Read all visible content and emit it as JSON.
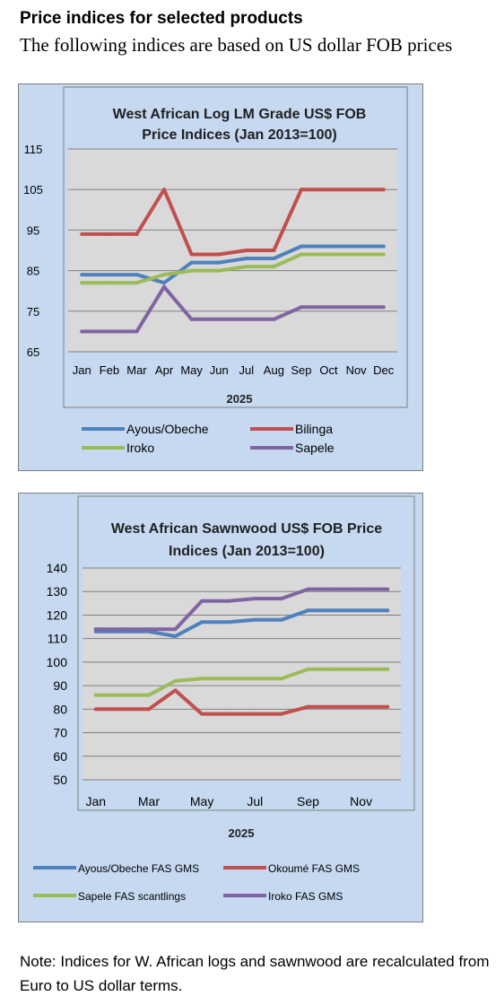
{
  "header": {
    "title": "Price indices for selected products",
    "subtitle": "The following indices are based on US dollar FOB prices"
  },
  "charts": {
    "logs": {
      "title_line1": "West African Log LM Grade US$ FOB",
      "title_line2": "Price Indices (Jan 2013=100)"
    },
    "sawnwood": {
      "title_line1": "West African Sawnwood US$ FOB Price",
      "title_line2": "Indices (Jan 2013=100)"
    }
  },
  "chart_data": [
    {
      "type": "line",
      "title": "West African Log LM Grade US$ FOB Price Indices (Jan 2013=100)",
      "xlabel": "2025",
      "ylabel": "",
      "categories": [
        "Jan",
        "Feb",
        "Mar",
        "Apr",
        "May",
        "Jun",
        "Jul",
        "Aug",
        "Sep",
        "Oct",
        "Nov",
        "Dec"
      ],
      "ylim": [
        65,
        115
      ],
      "yticks": [
        65,
        75,
        85,
        95,
        105,
        115
      ],
      "grid": true,
      "legend": "bottom",
      "series": [
        {
          "name": "Ayous/Obeche",
          "color": "#4f81bd",
          "values": [
            84,
            84,
            84,
            82,
            87,
            87,
            88,
            88,
            91,
            91,
            91,
            91
          ]
        },
        {
          "name": "Bilinga",
          "color": "#c0504d",
          "values": [
            94,
            94,
            94,
            105,
            89,
            89,
            90,
            90,
            105,
            105,
            105,
            105
          ]
        },
        {
          "name": "Iroko",
          "color": "#9bbb59",
          "values": [
            82,
            82,
            82,
            84,
            85,
            85,
            86,
            86,
            89,
            89,
            89,
            89
          ]
        },
        {
          "name": "Sapele",
          "color": "#8064a2",
          "values": [
            70,
            70,
            70,
            81,
            73,
            73,
            73,
            73,
            76,
            76,
            76,
            76
          ]
        }
      ]
    },
    {
      "type": "line",
      "title": "West African Sawnwood US$ FOB Price Indices (Jan 2013=100)",
      "xlabel": "2025",
      "ylabel": "",
      "categories": [
        "Jan",
        "Feb",
        "Mar",
        "Apr",
        "May",
        "Jun",
        "Jul",
        "Aug",
        "Sep",
        "Oct",
        "Nov",
        "Dec"
      ],
      "xtick_labels": [
        "Jan",
        "",
        "Mar",
        "",
        "May",
        "",
        "Jul",
        "",
        "Sep",
        "",
        "Nov",
        ""
      ],
      "ylim": [
        50,
        140
      ],
      "yticks": [
        50,
        60,
        70,
        80,
        90,
        100,
        110,
        120,
        130,
        140
      ],
      "grid": true,
      "legend": "bottom",
      "series": [
        {
          "name": "Ayous/Obeche  FAS GMS",
          "color": "#4f81bd",
          "values": [
            113,
            113,
            113,
            111,
            117,
            117,
            118,
            118,
            122,
            122,
            122,
            122
          ]
        },
        {
          "name": "Okoumé  FAS GMS",
          "color": "#c0504d",
          "values": [
            80,
            80,
            80,
            88,
            78,
            78,
            78,
            78,
            81,
            81,
            81,
            81
          ]
        },
        {
          "name": "Sapele FAS scantlings",
          "color": "#9bbb59",
          "values": [
            86,
            86,
            86,
            92,
            93,
            93,
            93,
            93,
            97,
            97,
            97,
            97
          ]
        },
        {
          "name": "Iroko FAS GMS",
          "color": "#8064a2",
          "values": [
            114,
            114,
            114,
            114,
            126,
            126,
            127,
            127,
            131,
            131,
            131,
            131
          ]
        }
      ]
    }
  ],
  "footer": {
    "note": "Note: Indices for W. African logs and sawnwood are recalculated from Euro to US dollar terms."
  }
}
